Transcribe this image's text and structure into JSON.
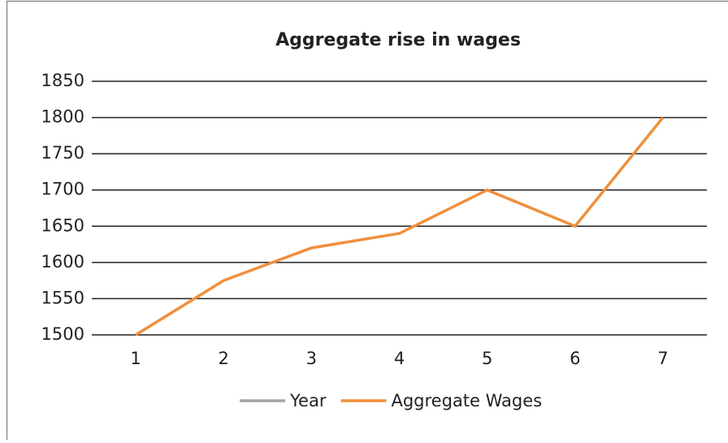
{
  "chart_data": {
    "type": "line",
    "title": "Aggregate rise in wages",
    "categories": [
      "1",
      "2",
      "3",
      "4",
      "5",
      "6",
      "7"
    ],
    "series": [
      {
        "name": "Year",
        "color": "#a5a5a5",
        "values": [
          null,
          null,
          null,
          null,
          null,
          null,
          null
        ]
      },
      {
        "name": "Aggregate Wages",
        "color": "#f08f3c",
        "values": [
          1500,
          1575,
          1620,
          1640,
          1700,
          1650,
          1800
        ]
      }
    ],
    "ylim": [
      1500,
      1850
    ],
    "yticks": [
      1500,
      1550,
      1600,
      1650,
      1700,
      1750,
      1800,
      1850
    ],
    "grid": true,
    "legend": "bottom"
  }
}
